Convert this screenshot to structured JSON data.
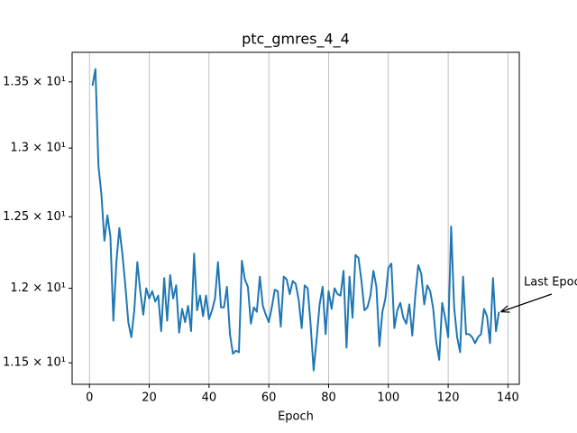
{
  "chart_data": {
    "type": "line",
    "title": "ptc_gmres_4_4",
    "xlabel": "Epoch",
    "x": [
      1,
      2,
      3,
      4,
      5,
      6,
      7,
      8,
      9,
      10,
      11,
      12,
      13,
      14,
      15,
      16,
      17,
      18,
      19,
      20,
      21,
      22,
      23,
      24,
      25,
      26,
      27,
      28,
      29,
      30,
      31,
      32,
      33,
      34,
      35,
      36,
      37,
      38,
      39,
      40,
      41,
      42,
      43,
      44,
      45,
      46,
      47,
      48,
      49,
      50,
      51,
      52,
      53,
      54,
      55,
      56,
      57,
      58,
      59,
      60,
      61,
      62,
      63,
      64,
      65,
      66,
      67,
      68,
      69,
      70,
      71,
      72,
      73,
      74,
      75,
      76,
      77,
      78,
      79,
      80,
      81,
      82,
      83,
      84,
      85,
      86,
      87,
      88,
      89,
      90,
      91,
      92,
      93,
      94,
      95,
      96,
      97,
      98,
      99,
      100,
      101,
      102,
      103,
      104,
      105,
      106,
      107,
      108,
      109,
      110,
      111,
      112,
      113,
      114,
      115,
      116,
      117,
      118,
      119,
      120,
      121,
      122,
      123,
      124,
      125,
      126,
      127,
      128,
      129,
      130,
      131,
      132,
      133,
      134,
      135,
      136,
      137
    ],
    "series": [
      {
        "name": "ptc_gmres_4_4",
        "color": "#1f77b4",
        "values": [
          13.47,
          13.6,
          12.87,
          12.66,
          12.33,
          12.51,
          12.36,
          11.78,
          12.18,
          12.42,
          12.24,
          12.02,
          11.77,
          11.67,
          11.85,
          12.18,
          11.98,
          11.82,
          12.0,
          11.93,
          11.98,
          11.91,
          11.95,
          11.71,
          12.07,
          11.78,
          12.09,
          11.93,
          12.02,
          11.7,
          11.86,
          11.77,
          11.88,
          11.71,
          12.24,
          11.85,
          11.95,
          11.81,
          11.95,
          11.79,
          11.85,
          11.93,
          12.18,
          11.87,
          11.87,
          12.01,
          11.69,
          11.56,
          11.58,
          11.57,
          12.19,
          12.06,
          12.01,
          11.76,
          11.87,
          11.84,
          12.08,
          11.88,
          11.82,
          11.77,
          11.87,
          11.99,
          11.98,
          11.74,
          12.08,
          12.06,
          11.96,
          12.05,
          12.03,
          11.92,
          11.73,
          12.02,
          12.0,
          11.75,
          11.45,
          11.66,
          11.89,
          12.01,
          11.69,
          11.98,
          11.86,
          12.0,
          11.96,
          11.95,
          12.12,
          11.6,
          12.08,
          11.8,
          12.23,
          12.21,
          12.05,
          11.85,
          11.87,
          11.95,
          12.12,
          12.01,
          11.61,
          11.84,
          11.93,
          12.14,
          12.17,
          11.73,
          11.85,
          11.9,
          11.8,
          11.76,
          11.89,
          11.68,
          11.95,
          12.16,
          12.1,
          11.89,
          12.02,
          11.98,
          11.86,
          11.64,
          11.52,
          11.9,
          11.8,
          11.67,
          12.43,
          11.87,
          11.67,
          11.57,
          12.08,
          11.69,
          11.69,
          11.67,
          11.63,
          11.67,
          11.69,
          11.86,
          11.81,
          11.63,
          12.07,
          11.71,
          11.84
        ]
      }
    ],
    "xlim": [
      -5.8,
      143.8
    ],
    "xticks": [
      0,
      20,
      40,
      60,
      80,
      100,
      120,
      140
    ],
    "ylim": [
      11.36,
      13.73
    ],
    "ylog": true,
    "yticks": [
      {
        "value": 11.5,
        "label": "1.15 × 10¹"
      },
      {
        "value": 12,
        "label": "1.2 × 10¹"
      },
      {
        "value": 12.5,
        "label": "1.25 × 10¹"
      },
      {
        "value": 13,
        "label": "1.3 × 10¹"
      },
      {
        "value": 13.5,
        "label": "1.35 × 10¹"
      }
    ],
    "xgrid": true,
    "annotation": {
      "text": "Last Epoch",
      "x": 137,
      "y": 11.84
    }
  }
}
